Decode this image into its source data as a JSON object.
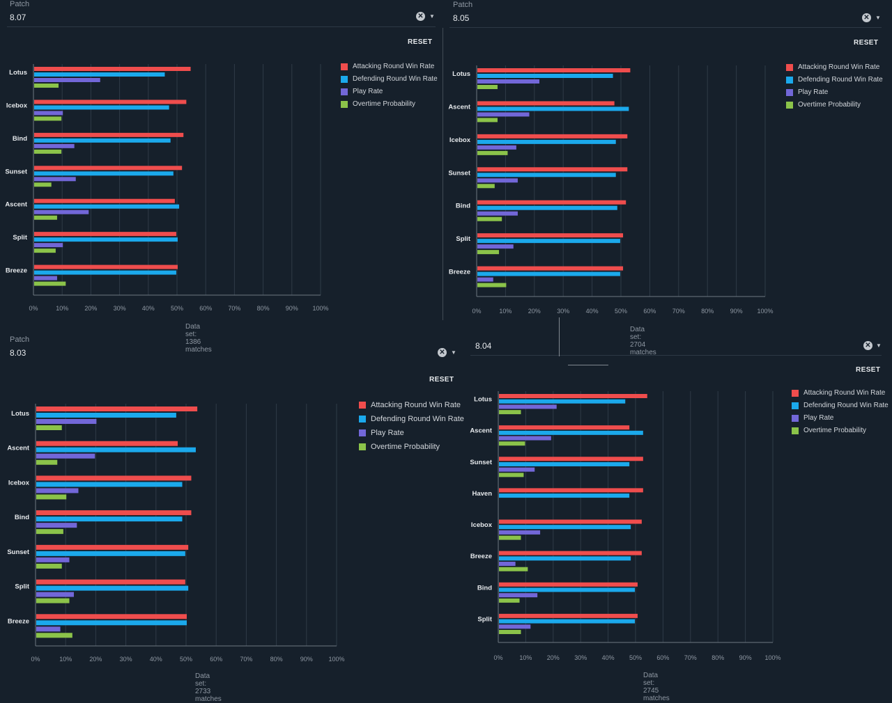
{
  "patch_label": "Patch",
  "reset_label": "RESET",
  "clear_icon": "clear-circle-icon",
  "colors": {
    "attacking": "#ef4d4d",
    "defending": "#1ba9ec",
    "play": "#7267d8",
    "overtime": "#8bc34a"
  },
  "legend": [
    "Attacking Round Win Rate",
    "Defending Round Win Rate",
    "Play Rate",
    "Overtime Probability"
  ],
  "chart_data": [
    {
      "type": "bar",
      "patch": "8.07",
      "dataset": "Data set: 1386 matches",
      "categories": [
        "Lotus",
        "Icebox",
        "Bind",
        "Sunset",
        "Ascent",
        "Split",
        "Breeze"
      ],
      "xticks": [
        "0%",
        "10%",
        "20%",
        "30%",
        "40%",
        "50%",
        "60%",
        "70%",
        "80%",
        "90%",
        "100%"
      ],
      "xlim": [
        0,
        100
      ],
      "grid": true,
      "legend_position": "top-right",
      "series": [
        {
          "name": "Attacking Round Win Rate",
          "values": [
            54.5,
            53,
            52,
            51.5,
            49,
            49.5,
            50
          ]
        },
        {
          "name": "Defending Round Win Rate",
          "values": [
            45.5,
            47,
            47.5,
            48.5,
            50.5,
            50,
            49.5
          ]
        },
        {
          "name": "Play Rate",
          "values": [
            23,
            10,
            14,
            14.5,
            19,
            10,
            8
          ]
        },
        {
          "name": "Overtime Probability",
          "values": [
            8.5,
            9.5,
            9.5,
            6,
            8,
            7.5,
            11
          ]
        }
      ]
    },
    {
      "type": "bar",
      "patch": "8.05",
      "dataset": "Data set: 2704 matches",
      "categories": [
        "Lotus",
        "Ascent",
        "Icebox",
        "Sunset",
        "Bind",
        "Split",
        "Breeze"
      ],
      "xticks": [
        "0%",
        "10%",
        "20%",
        "30%",
        "40%",
        "50%",
        "60%",
        "70%",
        "80%",
        "90%",
        "100%"
      ],
      "xlim": [
        0,
        100
      ],
      "grid": true,
      "legend_position": "top-right",
      "series": [
        {
          "name": "Attacking Round Win Rate",
          "values": [
            53,
            47.5,
            52,
            52,
            51.5,
            50.5,
            50.5
          ]
        },
        {
          "name": "Defending Round Win Rate",
          "values": [
            47,
            52.5,
            48,
            48,
            48.5,
            49.5,
            49.5
          ]
        },
        {
          "name": "Play Rate",
          "values": [
            21.5,
            18,
            13.5,
            14,
            14,
            12.5,
            5.5
          ]
        },
        {
          "name": "Overtime Probability",
          "values": [
            7,
            7,
            10.5,
            6,
            8.5,
            7.5,
            10
          ]
        }
      ]
    },
    {
      "type": "bar",
      "patch": "8.03",
      "dataset": "Data set: 2733 matches",
      "categories": [
        "Lotus",
        "Ascent",
        "Icebox",
        "Bind",
        "Sunset",
        "Split",
        "Breeze"
      ],
      "xticks": [
        "0%",
        "10%",
        "20%",
        "30%",
        "40%",
        "50%",
        "60%",
        "70%",
        "80%",
        "90%",
        "100%"
      ],
      "xlim": [
        0,
        100
      ],
      "grid": true,
      "legend_position": "top-right",
      "series": [
        {
          "name": "Attacking Round Win Rate",
          "values": [
            53.5,
            47,
            51.5,
            51.5,
            50.5,
            49.5,
            50
          ]
        },
        {
          "name": "Defending Round Win Rate",
          "values": [
            46.5,
            53,
            48.5,
            48.5,
            49.5,
            50.5,
            50
          ]
        },
        {
          "name": "Play Rate",
          "values": [
            20,
            19.5,
            14,
            13.5,
            11,
            12.5,
            8
          ]
        },
        {
          "name": "Overtime Probability",
          "values": [
            8.5,
            7,
            10,
            9,
            8.5,
            11,
            12
          ]
        }
      ]
    },
    {
      "type": "bar",
      "patch": "8.04",
      "dataset": "Data set: 2745 matches",
      "categories": [
        "Lotus",
        "Ascent",
        "Sunset",
        "Haven",
        "Icebox",
        "Breeze",
        "Bind",
        "Split"
      ],
      "xticks": [
        "0%",
        "10%",
        "20%",
        "30%",
        "40%",
        "50%",
        "60%",
        "70%",
        "80%",
        "90%",
        "100%"
      ],
      "xlim": [
        0,
        100
      ],
      "grid": true,
      "legend_position": "top-right",
      "series": [
        {
          "name": "Attacking Round Win Rate",
          "values": [
            54,
            47.5,
            52.5,
            52.5,
            52,
            52,
            50.5,
            50.5
          ]
        },
        {
          "name": "Defending Round Win Rate",
          "values": [
            46,
            52.5,
            47.5,
            47.5,
            48,
            48,
            49.5,
            49.5
          ]
        },
        {
          "name": "Play Rate",
          "values": [
            21,
            19,
            13,
            0,
            15,
            6,
            14,
            11.5
          ]
        },
        {
          "name": "Overtime Probability",
          "values": [
            8,
            9.5,
            9,
            0,
            8,
            10.5,
            7.5,
            8
          ]
        }
      ]
    }
  ]
}
